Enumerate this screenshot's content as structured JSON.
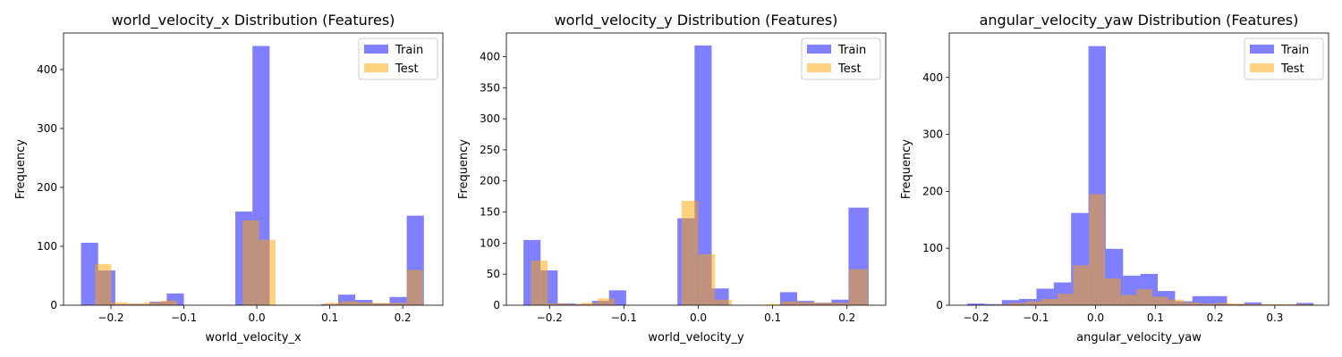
{
  "chart_data": [
    {
      "type": "histogram",
      "title": "world_velocity_x Distribution (Features)",
      "xlabel": "world_velocity_x",
      "ylabel": "Frequency",
      "xlim": [
        -0.265,
        0.255
      ],
      "ylim": [
        0,
        462
      ],
      "xticks": [
        -0.2,
        -0.1,
        0.0,
        0.1,
        0.2
      ],
      "xtick_labels": [
        "−0.2",
        "−0.1",
        "0.0",
        "0.1",
        "0.2"
      ],
      "yticks": [
        0,
        100,
        200,
        300,
        400
      ],
      "legend": {
        "location": "upper right",
        "entries": [
          "Train",
          "Test"
        ]
      },
      "series": [
        {
          "name": "Train",
          "color": "#0000ff",
          "alpha": 0.5,
          "bin_edges": [
            -0.241,
            -0.2175,
            -0.194,
            -0.1705,
            -0.147,
            -0.1235,
            -0.1,
            -0.0765,
            -0.053,
            -0.0295,
            -0.006,
            0.0175,
            0.041,
            0.0645,
            0.088,
            0.1115,
            0.135,
            0.1585,
            0.182,
            0.2055,
            0.229
          ],
          "counts": [
            106,
            59,
            2,
            2,
            6,
            20,
            0,
            0,
            0,
            159,
            440,
            0,
            0,
            0,
            2,
            18,
            9,
            3,
            14,
            152
          ]
        },
        {
          "name": "Test",
          "color": "#ffa500",
          "alpha": 0.5,
          "bin_edges": [
            -0.222,
            -0.1995,
            -0.177,
            -0.1545,
            -0.132,
            -0.1095,
            -0.087,
            -0.0645,
            -0.042,
            -0.0195,
            0.003,
            0.0255,
            0.048,
            0.0705,
            0.093,
            0.1155,
            0.138,
            0.1605,
            0.183,
            0.2055,
            0.228
          ],
          "counts": [
            70,
            5,
            3,
            5,
            8,
            0,
            0,
            0,
            0,
            144,
            111,
            0,
            0,
            0,
            4,
            7,
            5,
            4,
            4,
            60
          ]
        }
      ]
    },
    {
      "type": "histogram",
      "title": "world_velocity_y Distribution (Features)",
      "xlabel": "world_velocity_y",
      "ylabel": "Frequency",
      "xlim": [
        -0.258,
        0.252
      ],
      "ylim": [
        0,
        438
      ],
      "xticks": [
        -0.2,
        -0.1,
        0.0,
        0.1,
        0.2
      ],
      "xtick_labels": [
        "−0.2",
        "−0.1",
        "0.0",
        "0.1",
        "0.2"
      ],
      "yticks": [
        0,
        50,
        100,
        150,
        200,
        250,
        300,
        350,
        400
      ],
      "legend": {
        "location": "upper right",
        "entries": [
          "Train",
          "Test"
        ]
      },
      "series": [
        {
          "name": "Train",
          "color": "#0000ff",
          "alpha": 0.5,
          "bin_edges": [
            -0.235,
            -0.212,
            -0.189,
            -0.166,
            -0.143,
            -0.12,
            -0.097,
            -0.074,
            -0.051,
            -0.028,
            -0.005,
            0.018,
            0.041,
            0.064,
            0.087,
            0.11,
            0.133,
            0.156,
            0.179,
            0.202,
            0.229
          ],
          "counts": [
            105,
            56,
            3,
            2,
            7,
            24,
            0,
            0,
            0,
            140,
            418,
            27,
            0,
            0,
            0,
            21,
            7,
            4,
            9,
            157
          ]
        },
        {
          "name": "Test",
          "color": "#ffa500",
          "alpha": 0.5,
          "bin_edges": [
            -0.225,
            -0.2025,
            -0.18,
            -0.1575,
            -0.135,
            -0.1125,
            -0.09,
            -0.0675,
            -0.045,
            -0.0225,
            0.0,
            0.0225,
            0.045,
            0.0675,
            0.09,
            0.1125,
            0.135,
            0.1575,
            0.18,
            0.2025,
            0.228
          ],
          "counts": [
            72,
            3,
            2,
            4,
            11,
            0,
            0,
            0,
            0,
            168,
            82,
            9,
            0,
            0,
            2,
            6,
            5,
            4,
            4,
            58
          ]
        }
      ]
    },
    {
      "type": "histogram",
      "title": "angular_velocity_yaw Distribution (Features)",
      "xlabel": "angular_velocity_yaw",
      "ylabel": "Frequency",
      "xlim": [
        -0.245,
        0.39
      ],
      "ylim": [
        0,
        478
      ],
      "xticks": [
        -0.2,
        -0.1,
        0.0,
        0.1,
        0.2,
        0.3
      ],
      "xtick_labels": [
        "−0.2",
        "−0.1",
        "0.0",
        "0.1",
        "0.2",
        "0.3"
      ],
      "yticks": [
        0,
        100,
        200,
        300,
        400
      ],
      "legend": {
        "location": "upper right",
        "entries": [
          "Train",
          "Test"
        ]
      },
      "series": [
        {
          "name": "Train",
          "color": "#0000ff",
          "alpha": 0.5,
          "bin_edges": [
            -0.215,
            -0.186,
            -0.157,
            -0.128,
            -0.099,
            -0.07,
            -0.041,
            -0.012,
            0.017,
            0.046,
            0.075,
            0.104,
            0.133,
            0.162,
            0.191,
            0.22,
            0.249,
            0.278,
            0.307,
            0.336,
            0.365
          ],
          "counts": [
            3,
            2,
            9,
            11,
            29,
            40,
            162,
            455,
            99,
            52,
            55,
            25,
            7,
            16,
            16,
            2,
            5,
            1,
            1,
            4
          ]
        },
        {
          "name": "Test",
          "color": "#ffa500",
          "alpha": 0.5,
          "bin_edges": [
            -0.17,
            -0.1435,
            -0.117,
            -0.0905,
            -0.064,
            -0.0375,
            -0.011,
            0.0155,
            0.042,
            0.0685,
            0.095,
            0.1215,
            0.148,
            0.1745,
            0.201,
            0.2275,
            0.254,
            0.2805,
            0.307,
            0.3335,
            0.36
          ],
          "counts": [
            2,
            4,
            7,
            11,
            20,
            70,
            195,
            47,
            18,
            28,
            15,
            10,
            5,
            3,
            4,
            3,
            2,
            2,
            2,
            2
          ]
        }
      ]
    }
  ]
}
